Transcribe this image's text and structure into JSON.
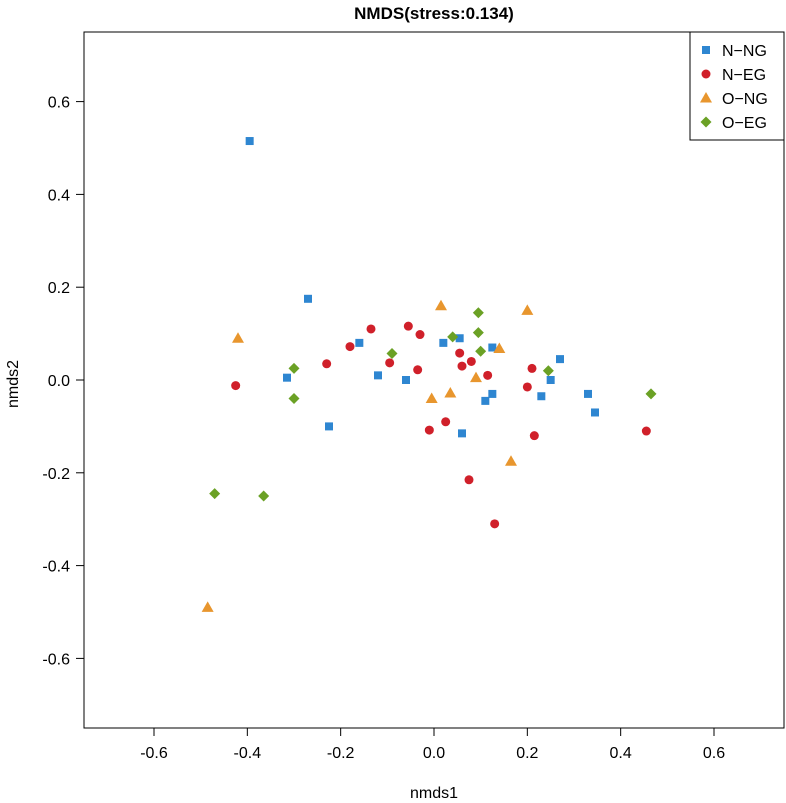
{
  "chart_data": {
    "type": "scatter",
    "title": "NMDS(stress:0.134)",
    "xlabel": "nmds1",
    "ylabel": "nmds2",
    "xlim": [
      -0.75,
      0.75
    ],
    "ylim": [
      -0.75,
      0.75
    ],
    "xticks": [
      "-0.6",
      "-0.4",
      "-0.2",
      "0.0",
      "0.2",
      "0.4",
      "0.6"
    ],
    "yticks": [
      "-0.6",
      "-0.4",
      "-0.2",
      "0.0",
      "0.2",
      "0.4",
      "0.6"
    ],
    "legend_position": "top-right",
    "series": [
      {
        "name": "N−NG",
        "marker": "square",
        "color": "#2e86d1",
        "points": [
          [
            -0.395,
            0.515
          ],
          [
            -0.27,
            0.175
          ],
          [
            -0.315,
            0.005
          ],
          [
            -0.225,
            -0.1
          ],
          [
            -0.16,
            0.08
          ],
          [
            -0.12,
            0.01
          ],
          [
            -0.06,
            0.0
          ],
          [
            0.02,
            0.08
          ],
          [
            0.055,
            0.09
          ],
          [
            0.125,
            0.07
          ],
          [
            0.06,
            -0.115
          ],
          [
            0.11,
            -0.045
          ],
          [
            0.125,
            -0.03
          ],
          [
            0.23,
            -0.035
          ],
          [
            0.25,
            0.0
          ],
          [
            0.27,
            0.045
          ],
          [
            0.33,
            -0.03
          ],
          [
            0.345,
            -0.07
          ]
        ]
      },
      {
        "name": "N−EG",
        "marker": "circle",
        "color": "#d0202a",
        "points": [
          [
            -0.425,
            -0.012
          ],
          [
            -0.23,
            0.035
          ],
          [
            -0.18,
            0.072
          ],
          [
            -0.135,
            0.11
          ],
          [
            -0.095,
            0.037
          ],
          [
            -0.055,
            0.116
          ],
          [
            -0.03,
            0.098
          ],
          [
            -0.035,
            0.022
          ],
          [
            -0.01,
            -0.108
          ],
          [
            0.025,
            -0.09
          ],
          [
            0.055,
            0.058
          ],
          [
            0.06,
            0.03
          ],
          [
            0.08,
            0.04
          ],
          [
            0.115,
            0.01
          ],
          [
            0.075,
            -0.215
          ],
          [
            0.13,
            -0.31
          ],
          [
            0.2,
            -0.015
          ],
          [
            0.21,
            0.025
          ],
          [
            0.215,
            -0.12
          ],
          [
            0.455,
            -0.11
          ]
        ]
      },
      {
        "name": "O−NG",
        "marker": "triangle",
        "color": "#e8962e",
        "points": [
          [
            -0.42,
            0.09
          ],
          [
            -0.485,
            -0.49
          ],
          [
            0.015,
            0.16
          ],
          [
            -0.005,
            -0.04
          ],
          [
            0.035,
            -0.028
          ],
          [
            0.09,
            0.005
          ],
          [
            0.14,
            0.068
          ],
          [
            0.165,
            -0.175
          ],
          [
            0.2,
            0.15
          ]
        ]
      },
      {
        "name": "O−EG",
        "marker": "diamond",
        "color": "#6ba125",
        "points": [
          [
            -0.47,
            -0.245
          ],
          [
            -0.365,
            -0.25
          ],
          [
            -0.3,
            0.025
          ],
          [
            -0.3,
            -0.04
          ],
          [
            -0.09,
            0.057
          ],
          [
            0.04,
            0.093
          ],
          [
            0.095,
            0.145
          ],
          [
            0.095,
            0.102
          ],
          [
            0.1,
            0.062
          ],
          [
            0.245,
            0.02
          ],
          [
            0.465,
            -0.03
          ]
        ]
      }
    ]
  }
}
